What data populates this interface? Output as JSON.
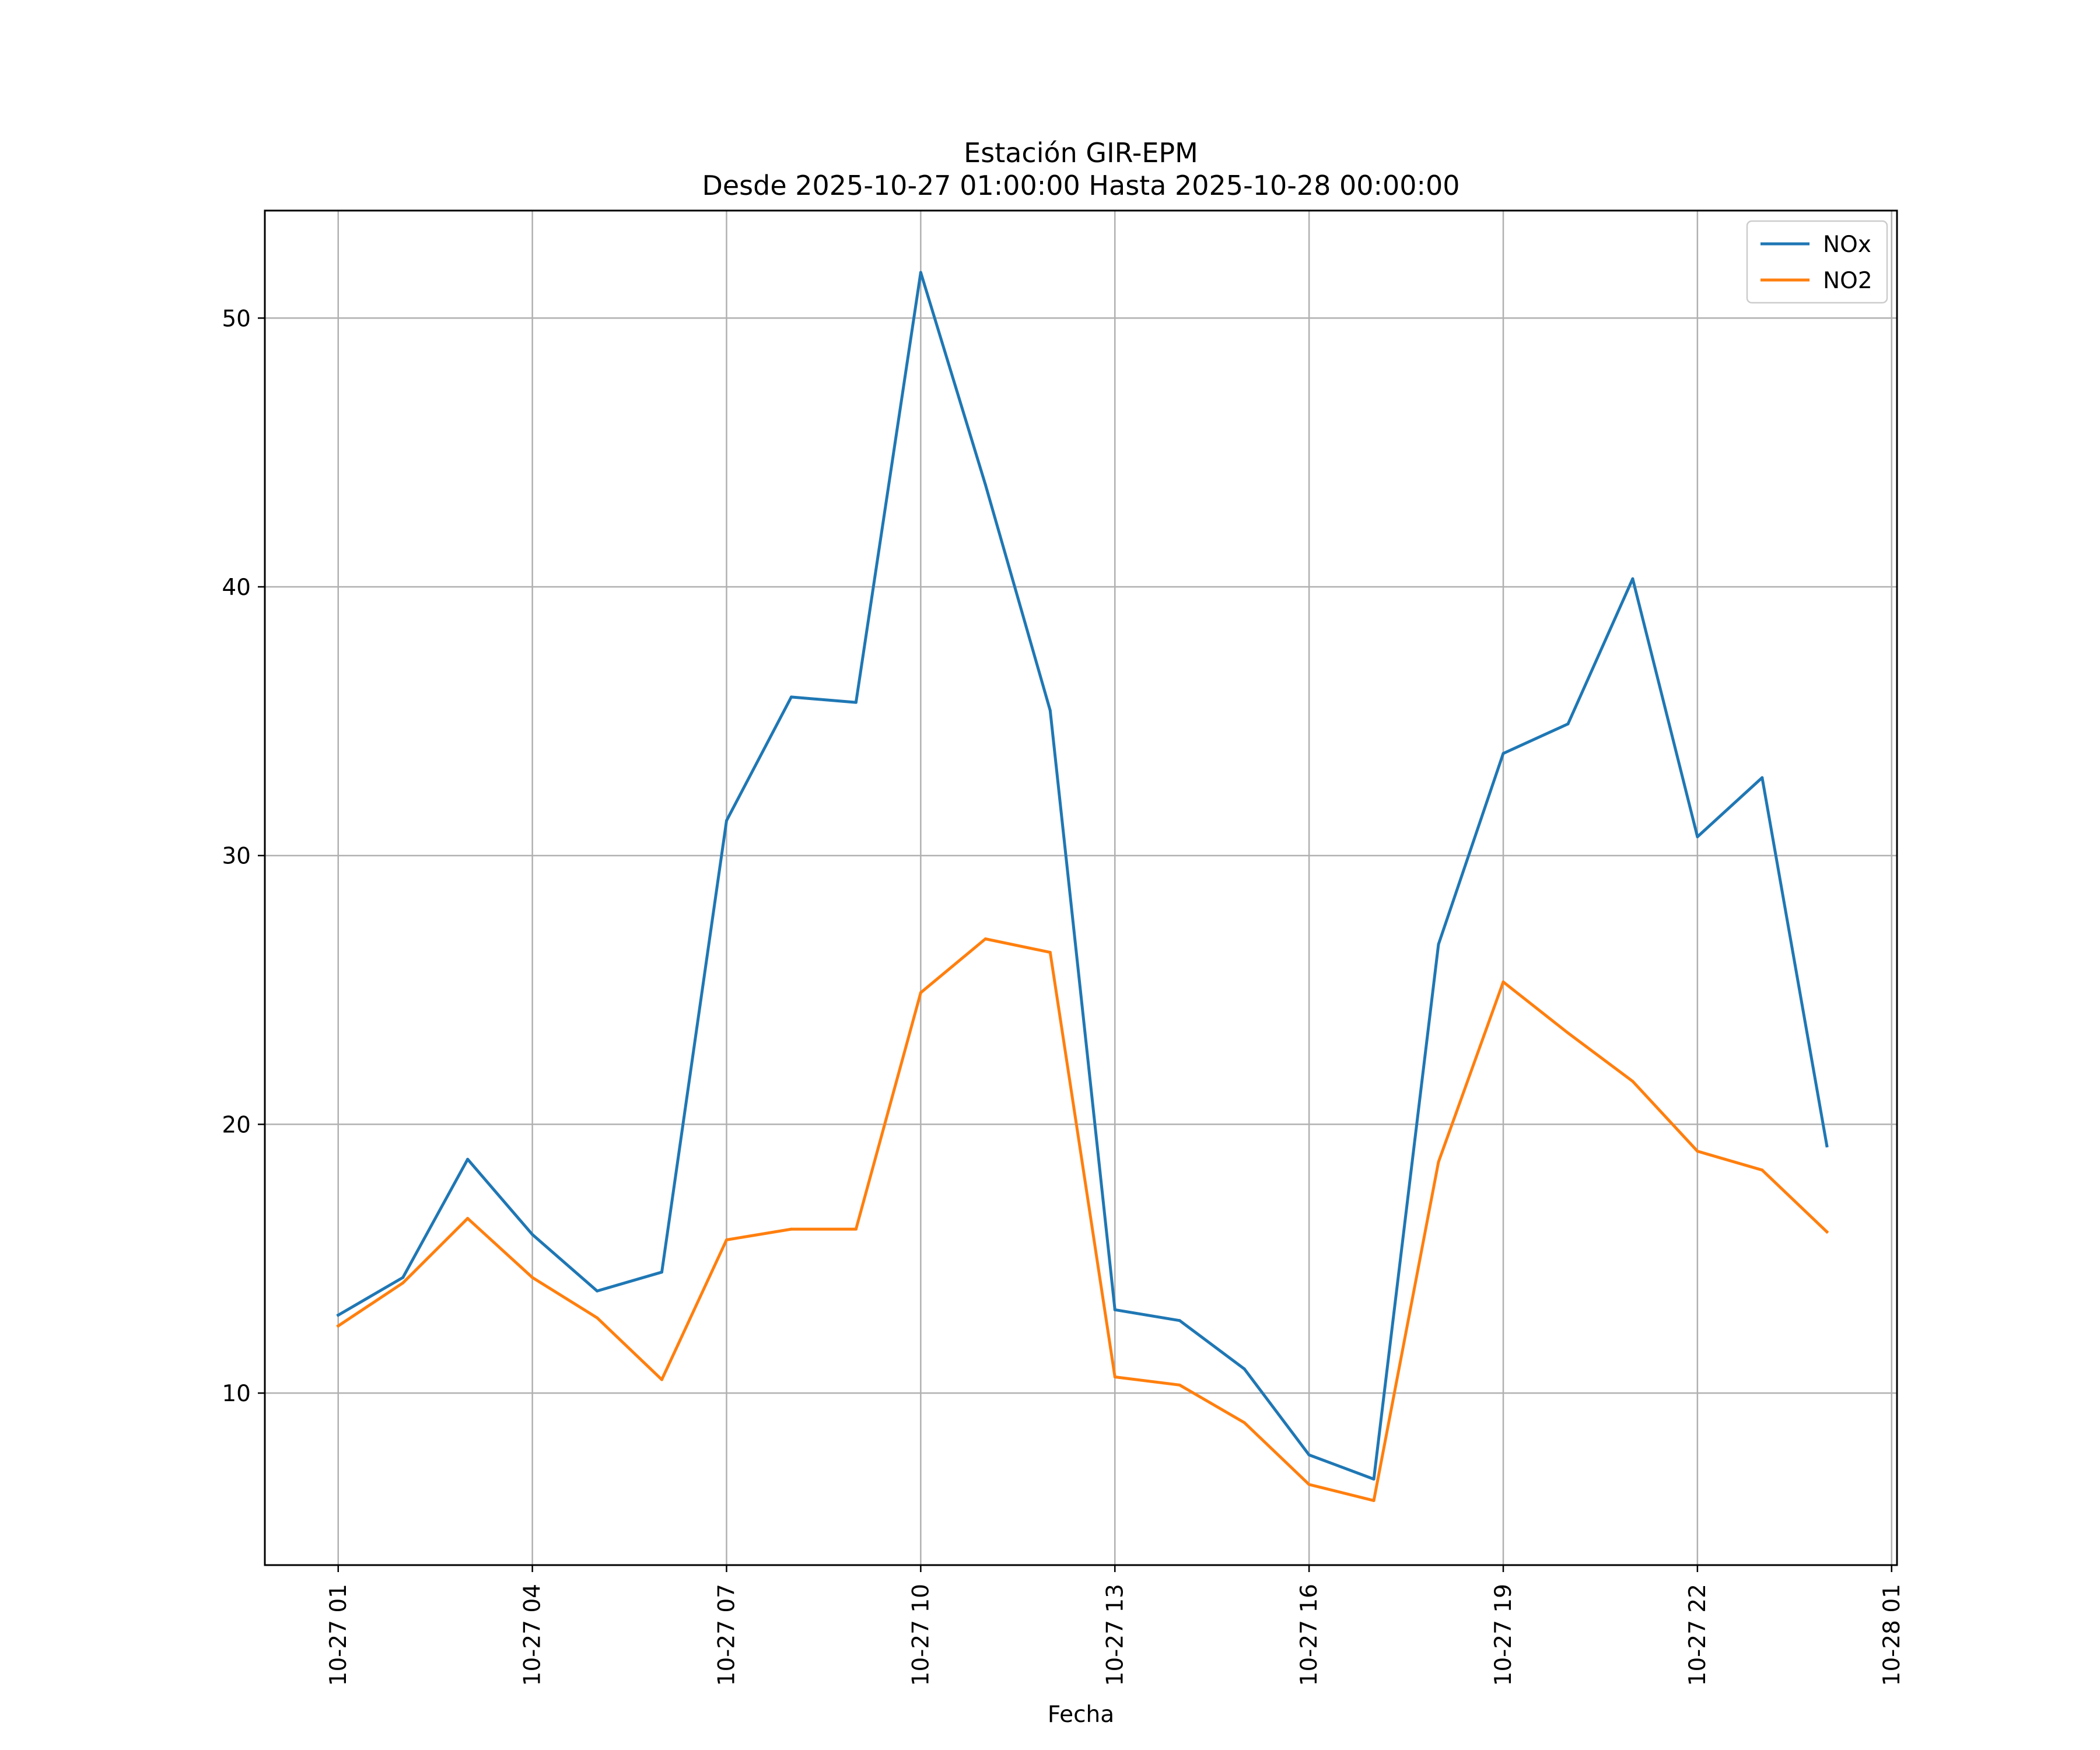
{
  "chart_data": {
    "type": "line",
    "title": "Estación GIR-EPM",
    "subtitle": "Desde 2025-10-27 01:00:00 Hasta 2025-10-28 00:00:00",
    "xlabel": "Fecha",
    "ylabel": "",
    "x_ticks": [
      {
        "label": "10-27 01",
        "value": "2025-10-27 01:00"
      },
      {
        "label": "10-27 04",
        "value": "2025-10-27 04:00"
      },
      {
        "label": "10-27 07",
        "value": "2025-10-27 07:00"
      },
      {
        "label": "10-27 10",
        "value": "2025-10-27 10:00"
      },
      {
        "label": "10-27 13",
        "value": "2025-10-27 13:00"
      },
      {
        "label": "10-27 16",
        "value": "2025-10-27 16:00"
      },
      {
        "label": "10-27 19",
        "value": "2025-10-27 19:00"
      },
      {
        "label": "10-27 22",
        "value": "2025-10-27 22:00"
      },
      {
        "label": "10-28 01",
        "value": "2025-10-28 01:00"
      }
    ],
    "xlim": [
      "2025-10-26 23:52",
      "2025-10-28 01:05"
    ],
    "y_ticks": [
      10,
      20,
      30,
      40,
      50
    ],
    "ylim": [
      3.6,
      54.0
    ],
    "grid": true,
    "legend_position": "top-right",
    "x": [
      "2025-10-27 01:00",
      "2025-10-27 02:00",
      "2025-10-27 03:00",
      "2025-10-27 04:00",
      "2025-10-27 05:00",
      "2025-10-27 06:00",
      "2025-10-27 07:00",
      "2025-10-27 08:00",
      "2025-10-27 09:00",
      "2025-10-27 10:00",
      "2025-10-27 11:00",
      "2025-10-27 12:00",
      "2025-10-27 13:00",
      "2025-10-27 14:00",
      "2025-10-27 15:00",
      "2025-10-27 16:00",
      "2025-10-27 17:00",
      "2025-10-27 18:00",
      "2025-10-27 19:00",
      "2025-10-27 20:00",
      "2025-10-27 21:00",
      "2025-10-27 22:00",
      "2025-10-27 23:00",
      "2025-10-28 00:00"
    ],
    "series": [
      {
        "name": "NOx",
        "color": "#1f77b4",
        "values": [
          12.9,
          14.3,
          18.7,
          15.9,
          13.8,
          14.5,
          31.3,
          35.9,
          35.7,
          51.7,
          43.8,
          35.4,
          13.1,
          12.7,
          10.9,
          7.7,
          6.8,
          26.7,
          33.8,
          34.9,
          40.3,
          30.7,
          32.9,
          19.2
        ]
      },
      {
        "name": "NO2",
        "color": "#ff7f0e",
        "values": [
          12.5,
          14.1,
          16.5,
          14.3,
          12.8,
          10.5,
          15.7,
          16.1,
          16.1,
          24.9,
          26.9,
          26.4,
          10.6,
          10.3,
          8.9,
          6.6,
          6.0,
          18.6,
          25.3,
          23.4,
          21.6,
          19.0,
          18.3,
          16.0
        ]
      }
    ]
  }
}
